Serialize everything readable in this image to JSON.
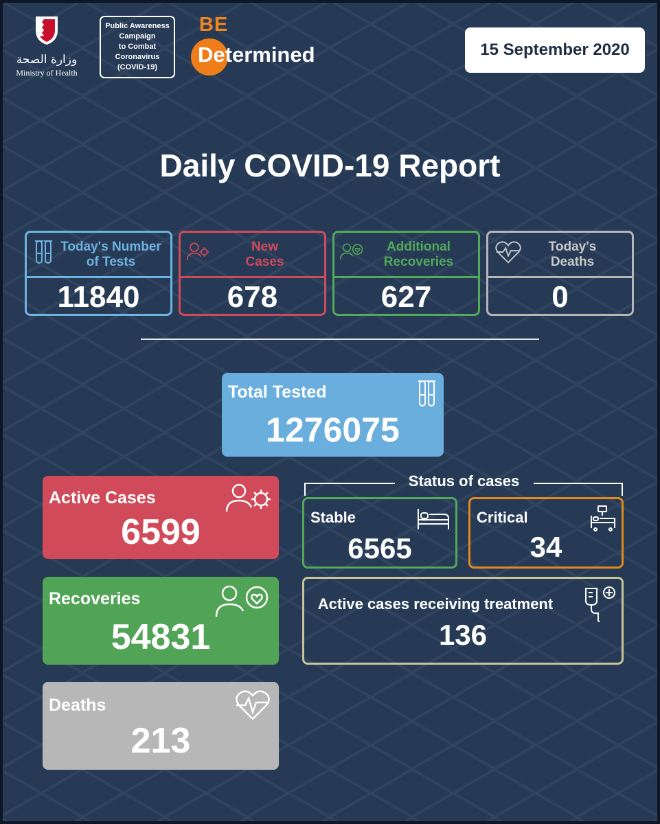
{
  "header": {
    "ministry_ar": "وزارة الصحة",
    "ministry_en": "Ministry of Health",
    "campaign_lines": [
      "Public Awareness",
      "Campaign",
      "to Combat",
      "Coronavirus",
      "(COVID-19)"
    ],
    "slogan_be": "BE",
    "slogan_determined": "Determined",
    "date": "15 September 2020"
  },
  "title": "Daily COVID-19 Report",
  "top_cards": [
    {
      "label_lines": [
        "Today's Number",
        "of Tests"
      ],
      "value": "11840",
      "icon": "test-tubes-icon",
      "color": "#6fb3e0"
    },
    {
      "label_lines": [
        "New",
        "Cases"
      ],
      "value": "678",
      "icon": "person-virus-icon",
      "color": "#d04a5b"
    },
    {
      "label_lines": [
        "Additional",
        "Recoveries"
      ],
      "value": "627",
      "icon": "person-heart-icon",
      "color": "#52a95a"
    },
    {
      "label_lines": [
        "Today's",
        "Deaths"
      ],
      "value": "0",
      "icon": "heartbeat-icon",
      "color": "#b6b6b6"
    }
  ],
  "total_tested": {
    "label": "Total Tested",
    "value": "1276075",
    "icon": "test-tubes-icon"
  },
  "active_cases": {
    "label": "Active Cases",
    "value": "6599",
    "icon": "person-virus-icon"
  },
  "recoveries": {
    "label": "Recoveries",
    "value": "54831",
    "icon": "person-heart-icon"
  },
  "deaths": {
    "label": "Deaths",
    "value": "213",
    "icon": "heartbeat-icon"
  },
  "status": {
    "title": "Status of cases",
    "stable": {
      "label": "Stable",
      "value": "6565",
      "icon": "bed-icon"
    },
    "critical": {
      "label": "Critical",
      "value": "34",
      "icon": "icu-bed-icon"
    },
    "treatment": {
      "label": "Active cases receiving treatment",
      "value": "136",
      "icon": "iv-drip-icon"
    }
  }
}
